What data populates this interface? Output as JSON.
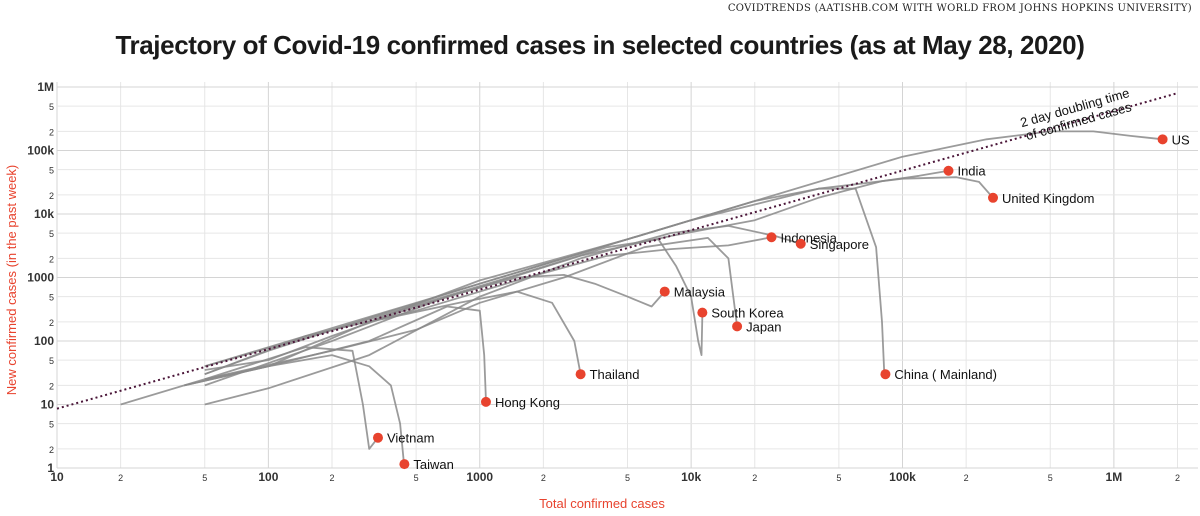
{
  "header": {
    "source": "COVIDTRENDS (AATISHB.COM WITH WORLD FROM JOHNS HOPKINS UNIVERSITY)",
    "title": "Trajectory of Covid-19 confirmed cases in selected countries (as at May 28, 2020)"
  },
  "chart_data": {
    "type": "line",
    "xscale": "log",
    "yscale": "log",
    "xlabel": "Total confirmed cases",
    "ylabel": "New confirmed cases (in the past week)",
    "xlim": [
      10,
      2500000
    ],
    "ylim": [
      1,
      1000000
    ],
    "grid": true,
    "x_ticks": [
      {
        "v": 10,
        "l": "10"
      },
      {
        "v": 20,
        "l": "2"
      },
      {
        "v": 50,
        "l": "5"
      },
      {
        "v": 100,
        "l": "100"
      },
      {
        "v": 200,
        "l": "2"
      },
      {
        "v": 500,
        "l": "5"
      },
      {
        "v": 1000,
        "l": "1000"
      },
      {
        "v": 2000,
        "l": "2"
      },
      {
        "v": 5000,
        "l": "5"
      },
      {
        "v": 10000,
        "l": "10k"
      },
      {
        "v": 20000,
        "l": "2"
      },
      {
        "v": 50000,
        "l": "5"
      },
      {
        "v": 100000,
        "l": "100k"
      },
      {
        "v": 200000,
        "l": "2"
      },
      {
        "v": 500000,
        "l": "5"
      },
      {
        "v": 1000000,
        "l": "1M"
      },
      {
        "v": 2000000,
        "l": "2"
      }
    ],
    "y_ticks": [
      {
        "v": 1,
        "l": "1"
      },
      {
        "v": 2,
        "l": "2"
      },
      {
        "v": 5,
        "l": "5"
      },
      {
        "v": 10,
        "l": "10"
      },
      {
        "v": 20,
        "l": "2"
      },
      {
        "v": 50,
        "l": "5"
      },
      {
        "v": 100,
        "l": "100"
      },
      {
        "v": 200,
        "l": "2"
      },
      {
        "v": 500,
        "l": "5"
      },
      {
        "v": 1000,
        "l": "1000"
      },
      {
        "v": 2000,
        "l": "2"
      },
      {
        "v": 5000,
        "l": "5"
      },
      {
        "v": 10000,
        "l": "10k"
      },
      {
        "v": 20000,
        "l": "2"
      },
      {
        "v": 50000,
        "l": "5"
      },
      {
        "v": 100000,
        "l": "100k"
      },
      {
        "v": 200000,
        "l": "2"
      },
      {
        "v": 500000,
        "l": "5"
      },
      {
        "v": 1000000,
        "l": "1M"
      }
    ],
    "reference_line": {
      "label": "2 day doubling time\nof confirmed cases",
      "points": [
        [
          10,
          8.6
        ],
        [
          2000000,
          800000
        ]
      ],
      "color": "#4a1538"
    },
    "line_color": "#8a8a8a",
    "marker_color": "#e8432e",
    "series": [
      {
        "name": "US",
        "points": [
          [
            50,
            30
          ],
          [
            100,
            70
          ],
          [
            300,
            230
          ],
          [
            1000,
            800
          ],
          [
            5000,
            4000
          ],
          [
            20000,
            16000
          ],
          [
            100000,
            80000
          ],
          [
            250000,
            150000
          ],
          [
            500000,
            200000
          ],
          [
            800000,
            200000
          ],
          [
            1200000,
            170000
          ],
          [
            1700000,
            150000
          ]
        ]
      },
      {
        "name": "India",
        "points": [
          [
            50,
            35
          ],
          [
            100,
            50
          ],
          [
            200,
            120
          ],
          [
            500,
            350
          ],
          [
            1000,
            700
          ],
          [
            3000,
            2200
          ],
          [
            8000,
            4500
          ],
          [
            20000,
            8000
          ],
          [
            40000,
            18000
          ],
          [
            80000,
            33000
          ],
          [
            120000,
            40000
          ],
          [
            165000,
            48000
          ]
        ]
      },
      {
        "name": "United Kingdom",
        "points": [
          [
            50,
            40
          ],
          [
            100,
            80
          ],
          [
            500,
            400
          ],
          [
            2000,
            1600
          ],
          [
            10000,
            8000
          ],
          [
            40000,
            25000
          ],
          [
            100000,
            36000
          ],
          [
            180000,
            38000
          ],
          [
            230000,
            32000
          ],
          [
            268000,
            18000
          ]
        ]
      },
      {
        "name": "Indonesia",
        "points": [
          [
            50,
            30
          ],
          [
            150,
            120
          ],
          [
            500,
            300
          ],
          [
            1500,
            900
          ],
          [
            4000,
            2200
          ],
          [
            8000,
            2800
          ],
          [
            15000,
            3200
          ],
          [
            24000,
            4300
          ]
        ]
      },
      {
        "name": "Singapore",
        "points": [
          [
            50,
            10
          ],
          [
            100,
            18
          ],
          [
            300,
            60
          ],
          [
            1000,
            500
          ],
          [
            3000,
            2000
          ],
          [
            8000,
            5000
          ],
          [
            15000,
            6500
          ],
          [
            25000,
            4500
          ],
          [
            33000,
            3400
          ]
        ]
      },
      {
        "name": "Malaysia",
        "points": [
          [
            50,
            20
          ],
          [
            200,
            100
          ],
          [
            700,
            500
          ],
          [
            1500,
            1000
          ],
          [
            2500,
            1100
          ],
          [
            3500,
            800
          ],
          [
            5000,
            500
          ],
          [
            6500,
            350
          ],
          [
            7500,
            600
          ]
        ]
      },
      {
        "name": "South Korea",
        "points": [
          [
            50,
            40
          ],
          [
            300,
            220
          ],
          [
            1500,
            1100
          ],
          [
            4000,
            3000
          ],
          [
            7000,
            4000
          ],
          [
            8500,
            1500
          ],
          [
            10000,
            500
          ],
          [
            10800,
            100
          ],
          [
            11200,
            60
          ],
          [
            11300,
            280
          ]
        ]
      },
      {
        "name": "Japan",
        "points": [
          [
            50,
            25
          ],
          [
            200,
            70
          ],
          [
            500,
            150
          ],
          [
            1000,
            400
          ],
          [
            2500,
            1000
          ],
          [
            6000,
            3000
          ],
          [
            12000,
            4200
          ],
          [
            15000,
            2000
          ],
          [
            16500,
            170
          ]
        ]
      },
      {
        "name": "China ( Mainland)",
        "points": [
          [
            300,
            200
          ],
          [
            1000,
            900
          ],
          [
            5000,
            4000
          ],
          [
            20000,
            16000
          ],
          [
            40000,
            25000
          ],
          [
            60000,
            25000
          ],
          [
            75000,
            3000
          ],
          [
            80000,
            200
          ],
          [
            82000,
            30
          ],
          [
            83000,
            30
          ]
        ]
      },
      {
        "name": "Thailand",
        "points": [
          [
            40,
            20
          ],
          [
            100,
            40
          ],
          [
            300,
            200
          ],
          [
            800,
            400
          ],
          [
            1500,
            600
          ],
          [
            2200,
            400
          ],
          [
            2800,
            100
          ],
          [
            3000,
            30
          ]
        ]
      },
      {
        "name": "Hong Kong",
        "points": [
          [
            50,
            25
          ],
          [
            100,
            40
          ],
          [
            300,
            100
          ],
          [
            700,
            350
          ],
          [
            1000,
            300
          ],
          [
            1050,
            60
          ],
          [
            1070,
            11
          ]
        ]
      },
      {
        "name": "Vietnam",
        "points": [
          [
            20,
            10
          ],
          [
            50,
            25
          ],
          [
            150,
            80
          ],
          [
            250,
            70
          ],
          [
            280,
            10
          ],
          [
            300,
            2
          ],
          [
            330,
            3
          ]
        ]
      },
      {
        "name": "Taiwan",
        "points": [
          [
            40,
            20
          ],
          [
            100,
            40
          ],
          [
            200,
            60
          ],
          [
            300,
            40
          ],
          [
            380,
            20
          ],
          [
            420,
            5
          ],
          [
            440,
            1
          ]
        ]
      }
    ],
    "labels": [
      {
        "name": "US",
        "x": 1700000,
        "y": 150000
      },
      {
        "name": "India",
        "x": 165000,
        "y": 48000
      },
      {
        "name": "United Kingdom",
        "x": 268000,
        "y": 18000
      },
      {
        "name": "Indonesia",
        "x": 24000,
        "y": 4300
      },
      {
        "name": "Singapore",
        "x": 33000,
        "y": 3400
      },
      {
        "name": "Malaysia",
        "x": 7500,
        "y": 600
      },
      {
        "name": "South Korea",
        "x": 11300,
        "y": 280
      },
      {
        "name": "Japan",
        "x": 16500,
        "y": 170
      },
      {
        "name": "China ( Mainland)",
        "x": 83000,
        "y": 30
      },
      {
        "name": "Thailand",
        "x": 3000,
        "y": 30
      },
      {
        "name": "Hong Kong",
        "x": 1070,
        "y": 11
      },
      {
        "name": "Vietnam",
        "x": 330,
        "y": 3
      },
      {
        "name": "Taiwan",
        "x": 440,
        "y": 1.15
      }
    ]
  }
}
